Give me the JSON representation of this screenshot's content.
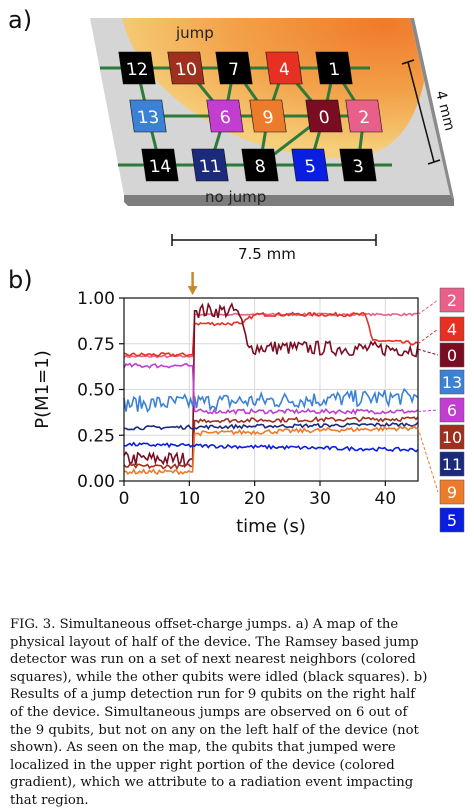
{
  "panel_a": {
    "label": "a)",
    "region_labels": {
      "jump": "jump",
      "no_jump": "no jump"
    },
    "dimensions": {
      "height": "4 mm",
      "width": "7.5 mm"
    },
    "qubits": [
      {
        "id": "12",
        "color": "#000000",
        "jumped": false
      },
      {
        "id": "10",
        "color": "#a0301e",
        "jumped": true
      },
      {
        "id": "7",
        "color": "#000000",
        "jumped": false
      },
      {
        "id": "4",
        "color": "#e53022",
        "jumped": true
      },
      {
        "id": "1",
        "color": "#000000",
        "jumped": false
      },
      {
        "id": "13",
        "color": "#3b82d6",
        "jumped": false
      },
      {
        "id": "6",
        "color": "#c23ed1",
        "jumped": true
      },
      {
        "id": "9",
        "color": "#ec7c2c",
        "jumped": true
      },
      {
        "id": "0",
        "color": "#7a0d22",
        "jumped": true
      },
      {
        "id": "2",
        "color": "#e8608a",
        "jumped": true
      },
      {
        "id": "14",
        "color": "#000000",
        "jumped": false
      },
      {
        "id": "11",
        "color": "#1c2a7c",
        "jumped": false
      },
      {
        "id": "8",
        "color": "#000000",
        "jumped": false
      },
      {
        "id": "5",
        "color": "#0a1ee0",
        "jumped": false
      },
      {
        "id": "3",
        "color": "#000000",
        "jumped": false
      }
    ]
  },
  "panel_b": {
    "label": "b)",
    "chart_data": {
      "type": "line",
      "xlabel": "time (s)",
      "ylabel": "P(M1=1)",
      "xlim": [
        0,
        45
      ],
      "ylim": [
        0,
        1
      ],
      "xticks": [
        "0",
        "10",
        "20",
        "30",
        "40"
      ],
      "yticks": [
        "0.00",
        "0.25",
        "0.50",
        "0.75",
        "1.00"
      ],
      "grid": true,
      "arrow_at_time": 10.5,
      "arrow_color": "#c88a2a",
      "legend_placement": "right",
      "series": [
        {
          "name": "2",
          "color": "#e8608a",
          "x": [
            0,
            10.5,
            10.8,
            45
          ],
          "y": [
            0.68,
            0.68,
            0.91,
            0.91
          ]
        },
        {
          "name": "4",
          "color": "#e53022",
          "x": [
            0,
            10.5,
            10.8,
            18,
            20,
            37,
            38,
            45
          ],
          "y": [
            0.69,
            0.69,
            0.86,
            0.86,
            0.91,
            0.91,
            0.77,
            0.75
          ]
        },
        {
          "name": "0",
          "color": "#7a0d22",
          "x": [
            0,
            10.5,
            10.8,
            17.5,
            19,
            45
          ],
          "y": [
            0.12,
            0.12,
            0.93,
            0.93,
            0.73,
            0.72
          ]
        },
        {
          "name": "13",
          "color": "#3b82d6",
          "x": [
            0,
            45
          ],
          "y": [
            0.42,
            0.46
          ]
        },
        {
          "name": "6",
          "color": "#c23ed1",
          "x": [
            0,
            10.5,
            10.8,
            45
          ],
          "y": [
            0.63,
            0.63,
            0.38,
            0.38
          ]
        },
        {
          "name": "10",
          "color": "#a0301e",
          "x": [
            0,
            10.5,
            10.8,
            45
          ],
          "y": [
            0.08,
            0.08,
            0.33,
            0.34
          ]
        },
        {
          "name": "11",
          "color": "#1c2a7c",
          "x": [
            0,
            45
          ],
          "y": [
            0.29,
            0.31
          ]
        },
        {
          "name": "9",
          "color": "#ec7c2c",
          "x": [
            0,
            10.5,
            10.8,
            45
          ],
          "y": [
            0.05,
            0.05,
            0.26,
            0.29
          ]
        },
        {
          "name": "5",
          "color": "#0a1ee0",
          "x": [
            0,
            45
          ],
          "y": [
            0.2,
            0.17
          ]
        }
      ]
    },
    "legend": [
      {
        "label": "2",
        "color": "#e8608a"
      },
      {
        "label": "4",
        "color": "#e53022"
      },
      {
        "label": "0",
        "color": "#7a0d22"
      },
      {
        "label": "13",
        "color": "#3b82d6"
      },
      {
        "label": "6",
        "color": "#c23ed1"
      },
      {
        "label": "10",
        "color": "#a0301e"
      },
      {
        "label": "11",
        "color": "#1c2a7c"
      },
      {
        "label": "9",
        "color": "#ec7c2c"
      },
      {
        "label": "5",
        "color": "#0a1ee0"
      }
    ]
  },
  "caption_lines": [
    "FIG. 3.  Simultaneous offset-charge jumps.  a) A map of the",
    "physical layout of half of the device.  The Ramsey based jump",
    "detector was run on a set of next nearest neighbors (colored",
    "squares), while the other qubits were idled (black squares).  b)",
    "Results of a jump detection run for 9 qubits on the right half",
    "of the device.  Simultaneous jumps are observed on 6 out of",
    "the 9 qubits, but not on any on the left half of the device (not",
    "shown).   As seen on the map, the qubits that jumped were",
    "localized in the upper right portion of the device (colored",
    "gradient), which we attribute to a radiation event impacting",
    "that region."
  ]
}
